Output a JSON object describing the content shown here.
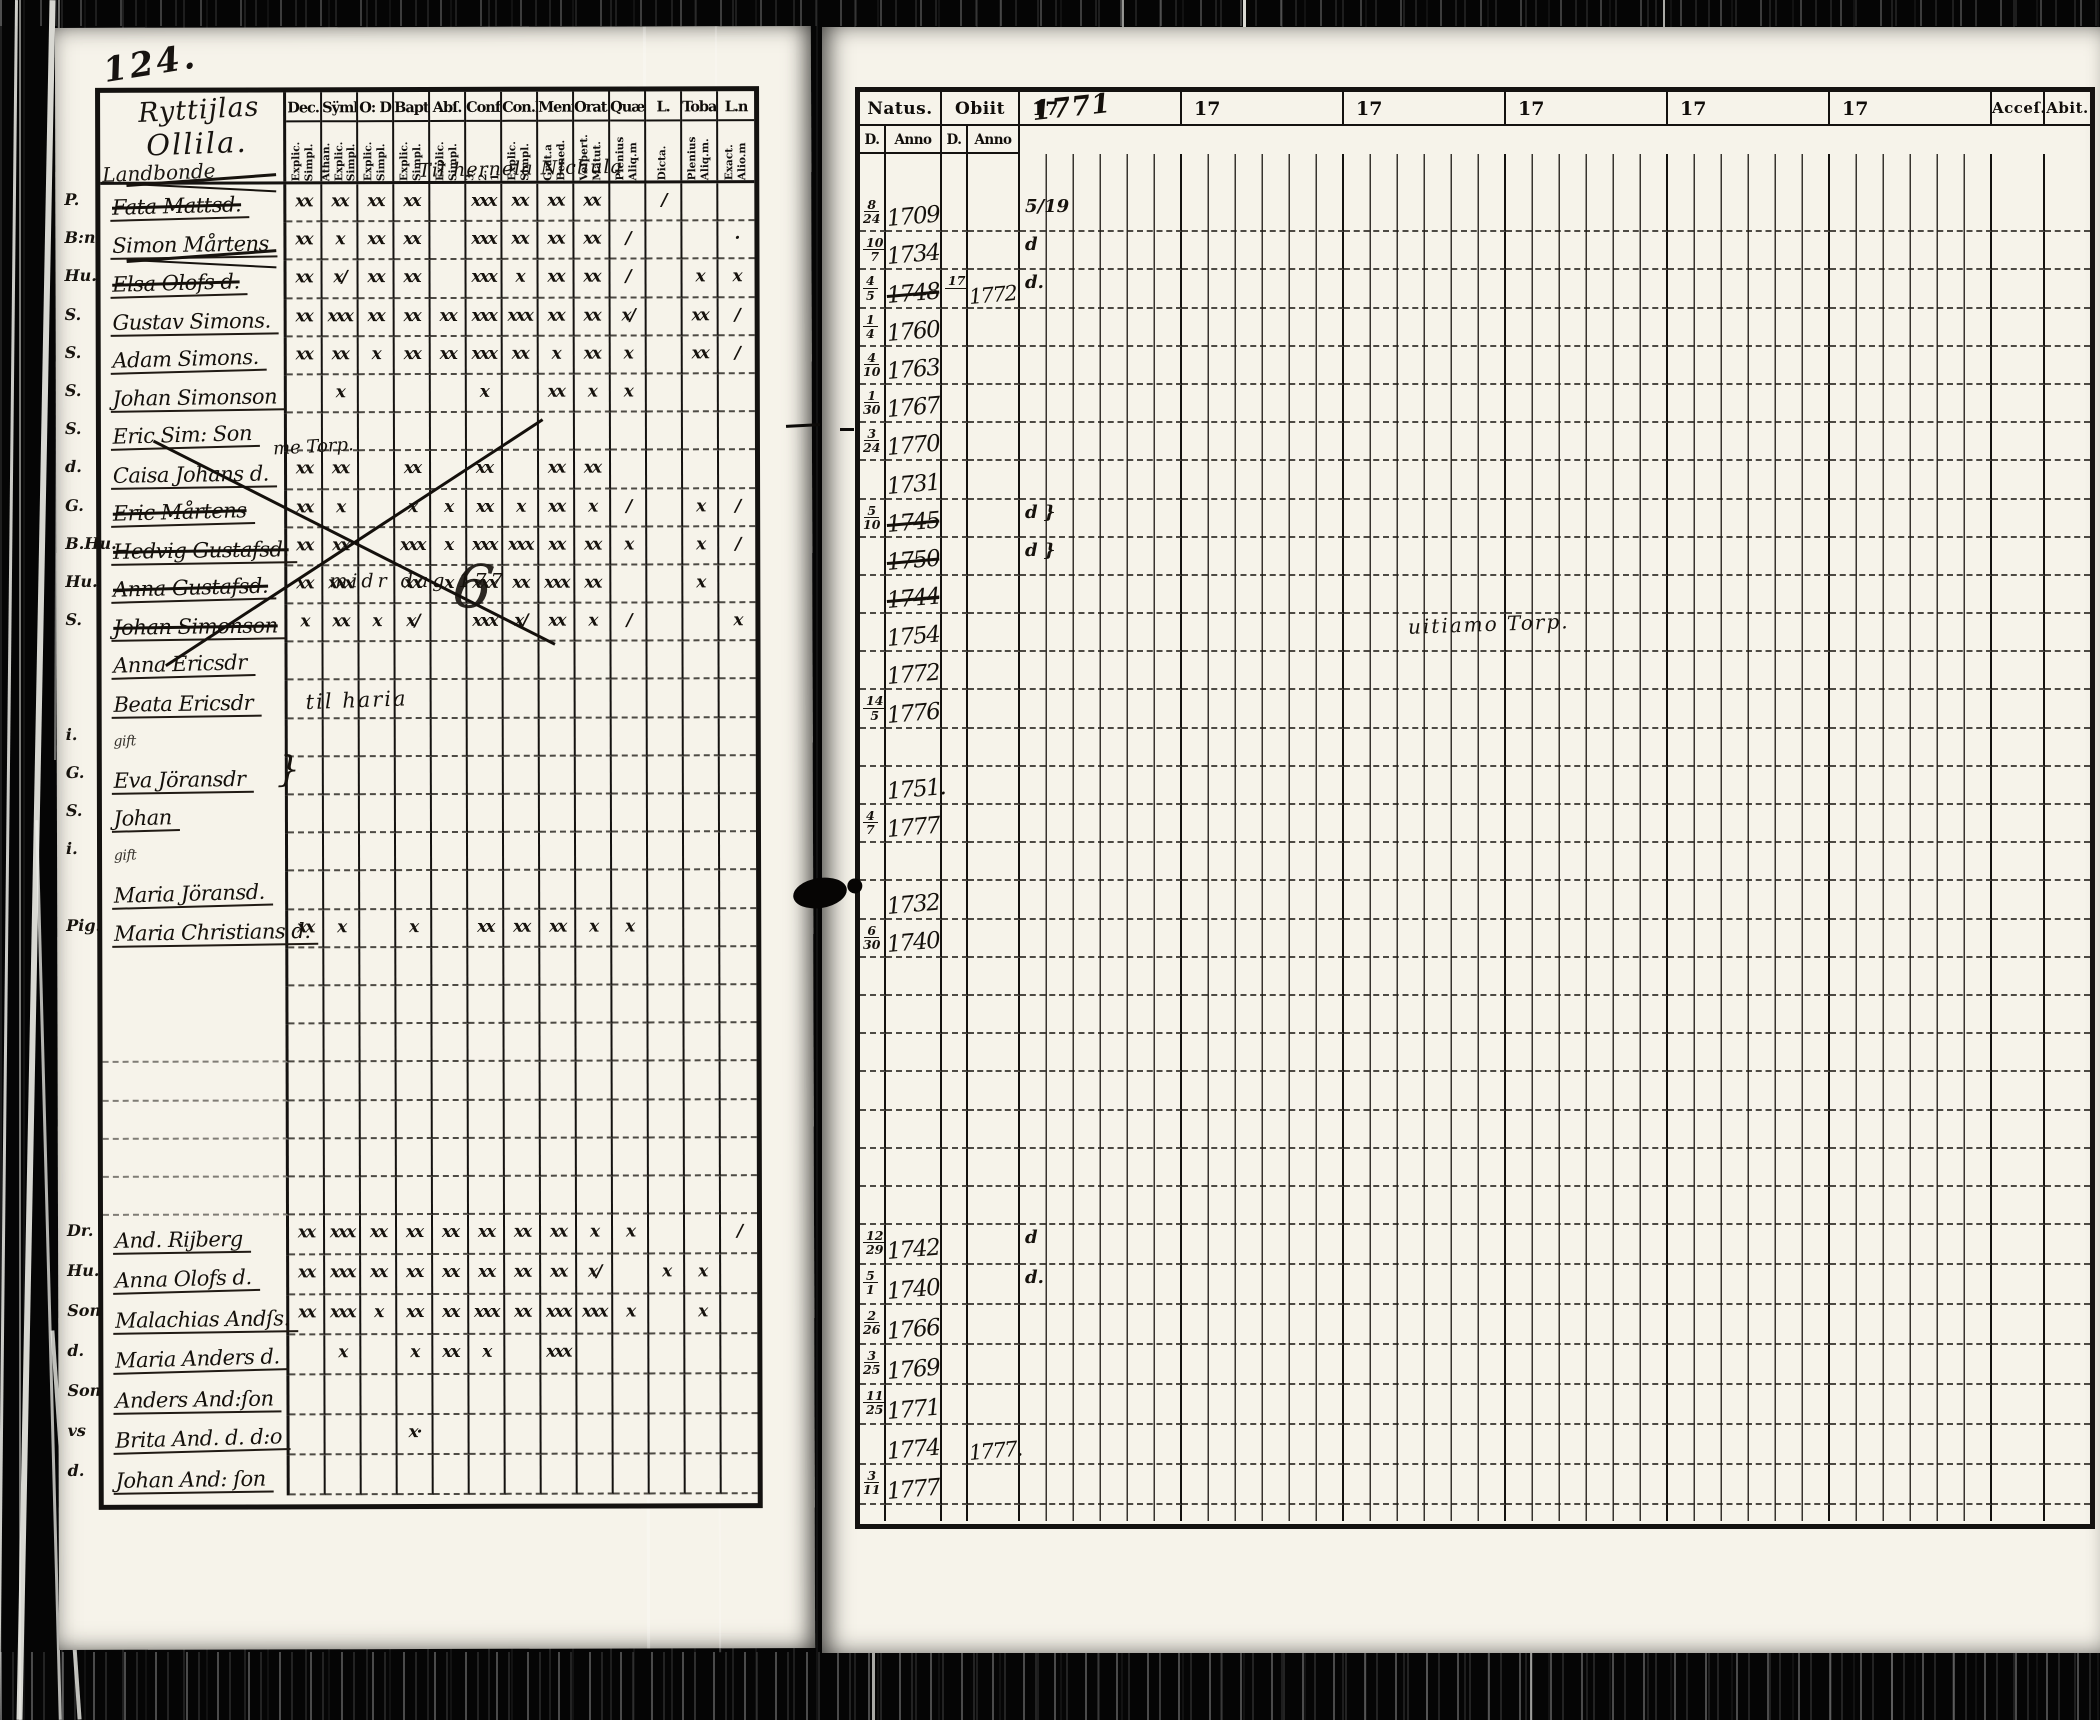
{
  "page": {
    "folio": "124."
  },
  "notes": {
    "hernela": "Til hernela Nichula",
    "torp_left": "me Torp.",
    "midr": "midr dag 177",
    "big6": "6",
    "tilharia": "til haria",
    "torp_right": "uitiamo Torp."
  },
  "left_table": {
    "title_line1": "Ryttijlas",
    "title_line2": "Ollila.",
    "subtitle": "Landbonde",
    "brace": "}",
    "columns": [
      {
        "label": "Dec.",
        "sub": [
          "Explic.",
          "Simpl."
        ]
      },
      {
        "label": "Sÿmb.",
        "sub": [
          "Athan.",
          "Explic.",
          "Simpl."
        ]
      },
      {
        "label": "O: D",
        "sub": [
          "Explic.",
          "Simpl."
        ]
      },
      {
        "label": "Bapt.",
        "sub": [
          "Explic.",
          "Simpl."
        ]
      },
      {
        "label": "Abſ.",
        "sub": [
          "Explic.",
          "Simpl."
        ]
      },
      {
        "label": "Conf.",
        "sub": [
          "3.",
          "2.",
          "1."
        ]
      },
      {
        "label": "Con.D",
        "sub": [
          "Explic.",
          "Simpl."
        ]
      },
      {
        "label": "Menſ.",
        "sub": [
          "Grat.a",
          "Bened."
        ]
      },
      {
        "label": "Orat.",
        "sub": [
          "Veſpert.",
          "Matut."
        ]
      },
      {
        "label": "Quæſt.",
        "sub": [
          "Plenius",
          "Aliq.m"
        ]
      },
      {
        "label": "L.",
        "sub": [
          "Dicta."
        ]
      },
      {
        "label": "Toba",
        "sub": [
          "Plenius",
          "Aliq.m."
        ]
      },
      {
        "label": "L.n",
        "sub": [
          "Exact.",
          "Alio.m"
        ]
      }
    ],
    "rows_top": [
      {
        "prefix": "P.",
        "name": "Fata Mattsd.",
        "struck": true,
        "scribble": true,
        "marks": [
          "xx",
          "xx",
          "xx",
          "xx",
          "",
          "xxx",
          "xx",
          "xx",
          "xx",
          "",
          "/",
          "",
          ""
        ]
      },
      {
        "prefix": "B:n",
        "name": "Simon Mårtens",
        "marks": [
          "xx",
          "x",
          "xx",
          "xx",
          "",
          "xxx",
          "xx",
          "xx",
          "xx",
          "/",
          "",
          "",
          "·"
        ]
      },
      {
        "prefix": "Hu.",
        "name": "Elsa Olofs d.",
        "struck": true,
        "scribble": true,
        "marks": [
          "xx",
          "x/",
          "xx",
          "xx",
          "",
          "xxx",
          "x",
          "xx",
          "xx",
          "/",
          "",
          "x",
          "x"
        ]
      },
      {
        "prefix": "S.",
        "name": "Gustav Simons.",
        "marks": [
          "xx",
          "xxx",
          "xx",
          "xx",
          "xx",
          "xxx",
          "xxx",
          "xx",
          "xx",
          "x/",
          "",
          "xx",
          "/"
        ]
      },
      {
        "prefix": "S.",
        "name": "Adam Simons.",
        "marks": [
          "xx",
          "xx",
          "x",
          "xx",
          "xx",
          "xxx",
          "xx",
          "x",
          "xx",
          "x",
          "",
          "xx",
          "/"
        ]
      },
      {
        "prefix": "S.",
        "name": "Johan Simonson",
        "marks": [
          "",
          "x",
          "",
          "",
          "",
          "x",
          "",
          "xx",
          "x",
          "x",
          "",
          "",
          ""
        ]
      },
      {
        "prefix": "S.",
        "name": "Eric Sim: Son",
        "marks": [
          "",
          "",
          "",
          "",
          "",
          "",
          "",
          "",
          "",
          "",
          "",
          "",
          ""
        ]
      },
      {
        "prefix": "d.",
        "name": "Caisa Johans d.",
        "marks": [
          "xx",
          "xx",
          "",
          "xx",
          "",
          "xx",
          "",
          "xx",
          "xx",
          "",
          "",
          "",
          ""
        ]
      },
      {
        "prefix": "G.",
        "name": "Eric Mårtens",
        "struck": true,
        "marks": [
          "xx",
          "x",
          "",
          "x",
          "x",
          "xx",
          "x",
          "xx",
          "x",
          "/",
          "",
          "x",
          "/"
        ]
      },
      {
        "prefix": "B.Hu.",
        "name": "Hedvig Gustafsd.",
        "struck": true,
        "marks": [
          "xx",
          "xx",
          "",
          "xxx",
          "x",
          "xxx",
          "xxx",
          "xx",
          "xx",
          "x",
          "",
          "x",
          "/"
        ]
      },
      {
        "prefix": "Hu.",
        "name": "Anna Gustafsd.",
        "struck": true,
        "marks": [
          "xx",
          "xxx",
          "",
          "xx",
          "x",
          "xxx",
          "xx",
          "xxx",
          "xx",
          "",
          "",
          "x",
          ""
        ]
      },
      {
        "prefix": "S.",
        "name": "Johan Simonson",
        "struck": true,
        "marks": [
          "x",
          "xx",
          "x",
          "x/",
          "",
          "xxx",
          "x/",
          "xx",
          "x",
          "/",
          "",
          "",
          "x"
        ]
      },
      {
        "prefix": "",
        "name": "Anna Ericsdr",
        "marks": [
          "",
          "",
          "",
          "",
          "",
          "",
          "",
          "",
          "",
          "",
          "",
          "",
          ""
        ]
      },
      {
        "prefix": "",
        "name": "Beata Ericsdr",
        "marks": [
          "",
          "",
          "",
          "",
          "",
          "",
          "",
          "",
          "",
          "",
          "",
          "",
          ""
        ]
      },
      {
        "prefix": "i.",
        "name": "gift",
        "small": true,
        "marks": [
          "",
          "",
          "",
          "",
          "",
          "",
          "",
          "",
          "",
          "",
          "",
          "",
          ""
        ]
      },
      {
        "prefix": "G.",
        "name": "Eva Jöransdr",
        "brace": true,
        "marks": [
          "",
          "",
          "",
          "",
          "",
          "",
          "",
          "",
          "",
          "",
          "",
          "",
          ""
        ]
      },
      {
        "prefix": "S.",
        "name": "Johan",
        "marks": [
          "",
          "",
          "",
          "",
          "",
          "",
          "",
          "",
          "",
          "",
          "",
          "",
          ""
        ]
      },
      {
        "prefix": "i.",
        "name": "gift",
        "small": true,
        "marks": [
          "",
          "",
          "",
          "",
          "",
          "",
          "",
          "",
          "",
          "",
          "",
          "",
          ""
        ]
      },
      {
        "prefix": "",
        "name": "Maria Jöransd.",
        "marks": [
          "",
          "",
          "",
          "",
          "",
          "",
          "",
          "",
          "",
          "",
          "",
          "",
          ""
        ]
      },
      {
        "prefix": "Pig.",
        "name": "Maria Christians d.",
        "marks": [
          "xx",
          "x",
          "",
          "x",
          "",
          "xx",
          "xx",
          "xx",
          "x",
          "x",
          "",
          "",
          ""
        ]
      },
      {
        "prefix": "",
        "name": "",
        "marks": [
          "",
          "",
          "",
          "",
          "",
          "",
          "",
          "",
          "",
          "",
          "",
          "",
          ""
        ]
      },
      {
        "prefix": "",
        "name": "",
        "marks": [
          "",
          "",
          "",
          "",
          "",
          "",
          "",
          "",
          "",
          "",
          "",
          "",
          ""
        ]
      }
    ],
    "rows_bottom": [
      {
        "prefix": "Dr.",
        "name": "And. Rijberg",
        "marks": [
          "xx",
          "xxx",
          "xx",
          "xx",
          "xx",
          "xx",
          "xx",
          "xx",
          "x",
          "x",
          "",
          "",
          "/"
        ]
      },
      {
        "prefix": "Hu.",
        "name": "Anna Olofs d.",
        "marks": [
          "xx",
          "xxx",
          "xx",
          "xx",
          "xx",
          "xx",
          "xx",
          "xx",
          "x/",
          "",
          "x",
          "x",
          ""
        ]
      },
      {
        "prefix": "Son",
        "name": "Malachias Andſs.",
        "marks": [
          "xx",
          "xxx",
          "x",
          "xx",
          "xx",
          "xxx",
          "xx",
          "xxx",
          "xxx",
          "x",
          "",
          "x",
          ""
        ]
      },
      {
        "prefix": "d.",
        "name": "Maria Anders d.",
        "marks": [
          "",
          "x",
          "",
          "x",
          "xx",
          "x",
          "",
          "xxx",
          "",
          "",
          "",
          "",
          ""
        ]
      },
      {
        "prefix": "Son",
        "name": "Anders And:ſon",
        "marks": [
          "",
          "",
          "",
          "",
          "",
          "",
          "",
          "",
          "",
          "",
          "",
          "",
          ""
        ]
      },
      {
        "prefix": "vs",
        "name": "Brita And. d. d:o",
        "marks": [
          "",
          "",
          "",
          "x·",
          "",
          "",
          "",
          "",
          "",
          "",
          "",
          "",
          ""
        ]
      },
      {
        "prefix": "d.",
        "name": "Johan And: ſon",
        "marks": [
          "",
          "",
          "",
          "",
          "",
          "",
          "",
          "",
          "",
          "",
          "",
          "",
          ""
        ]
      }
    ]
  },
  "right_table": {
    "natus_label": "Natus.",
    "obiit_label": "Obiit",
    "d_label": "D.",
    "anno_label": "Anno",
    "years_printed": [
      "17",
      "17",
      "17",
      "17",
      "17",
      "17"
    ],
    "year_handwritten": "1771",
    "acces_label": "Acceſ.",
    "abit_label": "Abit.",
    "rows_top": [
      {
        "d": "8/24",
        "anno": "1709",
        "y1771": "5/19"
      },
      {
        "d": "10/7",
        "anno": "1734",
        "y1771": "d"
      },
      {
        "d": "4/5",
        "anno": "1748",
        "struck": true,
        "obiit_d": "17",
        "obiit_anno": "1772",
        "y1771": "d."
      },
      {
        "d": "1/4",
        "anno": "1760"
      },
      {
        "d": "4/10",
        "anno": "1763"
      },
      {
        "d": "1/30",
        "anno": "1767"
      },
      {
        "d": "3/24",
        "anno": "1770"
      },
      {
        "d": "",
        "anno": "1731"
      },
      {
        "d": "5/10",
        "anno": "1745",
        "struck": true,
        "y1771": "d }"
      },
      {
        "d": "",
        "anno": "1750",
        "struck": true,
        "y1771": "d }"
      },
      {
        "d": "",
        "anno": "1744",
        "struck": true
      },
      {
        "d": "",
        "anno": "1754"
      },
      {
        "d": "",
        "anno": "1772"
      },
      {
        "d": "14/5",
        "anno": "1776"
      },
      {
        "d": "",
        "anno": ""
      },
      {
        "d": "",
        "anno": "1751."
      },
      {
        "d": "4/7",
        "anno": "1777"
      },
      {
        "d": "",
        "anno": ""
      },
      {
        "d": "",
        "anno": "1732"
      },
      {
        "d": "6/30",
        "anno": "1740"
      },
      {
        "d": "",
        "anno": ""
      },
      {
        "d": "",
        "anno": ""
      }
    ],
    "rows_bottom": [
      {
        "d": "12/29",
        "anno": "1742",
        "y1771": "d"
      },
      {
        "d": "5/1",
        "anno": "1740",
        "y1771": "d."
      },
      {
        "d": "2/26",
        "anno": "1766"
      },
      {
        "d": "3/25",
        "anno": "1769"
      },
      {
        "d": "11/25",
        "anno": "1771"
      },
      {
        "d": "",
        "anno": "1774",
        "obiit_anno": "1777."
      },
      {
        "d": "3/11",
        "anno": "1777"
      }
    ]
  }
}
